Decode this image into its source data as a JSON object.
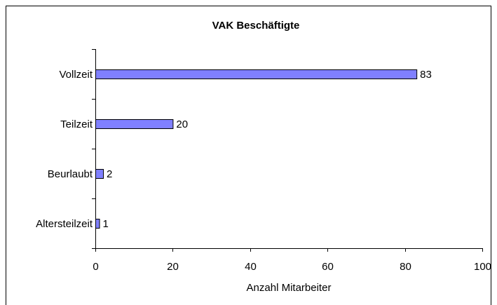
{
  "chart_data": {
    "type": "hbar",
    "title": "VAK Beschäftigte",
    "categories": [
      "Vollzeit",
      "Teilzeit",
      "Beurlaubt",
      "Altersteilzeit"
    ],
    "values": [
      83,
      20,
      2,
      1
    ],
    "color": "#8080ff",
    "xlabel": "Anzahl Mitarbeiter",
    "xlim": [
      0,
      100
    ],
    "xticks": [
      0,
      20,
      40,
      60,
      80,
      100
    ],
    "grid": false
  }
}
